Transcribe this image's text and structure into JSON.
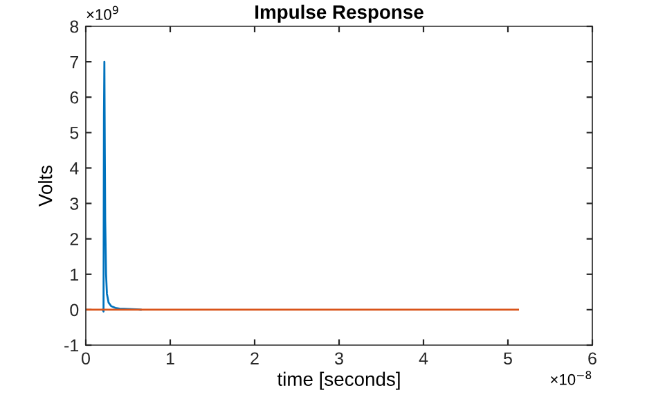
{
  "chart_data": {
    "type": "line",
    "title": "Impulse Response",
    "xlabel": "time [seconds]",
    "ylabel": "Volts",
    "annotations": [
      "×10$^{9}$",
      "×10$^{−8}$"
    ],
    "series": [
      {
        "color": "#0072bd",
        "x": [
          0.2,
          0.21,
          0.215,
          0.22,
          0.225,
          0.23,
          0.24,
          0.25,
          0.27,
          0.3,
          0.35,
          0.4,
          0.5,
          0.6,
          0.65
        ],
        "values": [
          0,
          -0.05,
          5.5,
          7,
          4.5,
          2.5,
          1.0,
          0.45,
          0.2,
          0.1,
          0.05,
          0.03,
          0.02,
          0.01,
          0
        ]
      },
      {
        "color": "#d95319",
        "x": [
          0,
          5.12
        ],
        "values": [
          0,
          0
        ]
      }
    ],
    "xlim": [
      0,
      6
    ],
    "xticks": [
      0,
      1,
      2,
      3,
      4,
      5,
      6
    ],
    "ylim": [
      -1,
      8
    ],
    "yticks": [
      -1,
      0,
      1,
      2,
      3,
      4,
      5,
      6,
      7,
      8
    ],
    "grid": false,
    "legend": false
  }
}
